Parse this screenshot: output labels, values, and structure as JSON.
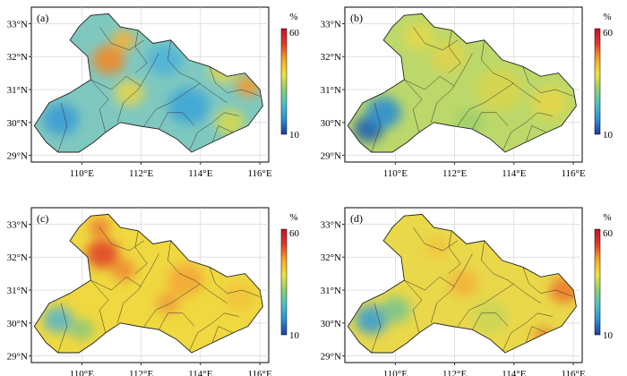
{
  "figure": {
    "x_ticks": [
      "110°E",
      "112°E",
      "114°E",
      "116°E"
    ],
    "y_ticks": [
      "33°N",
      "32°N",
      "31°N",
      "30°N",
      "29°N"
    ],
    "colorbar": {
      "unit": "%",
      "max_label": "60",
      "min_label": "10",
      "colors": [
        "#1f3d9e",
        "#2b8fd6",
        "#49c2c8",
        "#8fd16a",
        "#f0e33a",
        "#f5a623",
        "#e8362a",
        "#c8102e"
      ]
    },
    "panels": [
      {
        "label": "(a)",
        "base_color": "#7fc8c0",
        "blobs": [
          {
            "lon": 110.9,
            "lat": 31.9,
            "r": 0.55,
            "c": "#f08a2a"
          },
          {
            "lon": 111.4,
            "lat": 32.5,
            "r": 0.4,
            "c": "#f5b33a"
          },
          {
            "lon": 112.8,
            "lat": 31.9,
            "r": 0.6,
            "c": "#4fb4d8"
          },
          {
            "lon": 113.6,
            "lat": 30.5,
            "r": 0.7,
            "c": "#3fa6d6"
          },
          {
            "lon": 109.3,
            "lat": 30.1,
            "r": 0.6,
            "c": "#3a9bd4"
          },
          {
            "lon": 115.6,
            "lat": 31.1,
            "r": 0.4,
            "c": "#f59a2e"
          },
          {
            "lon": 114.8,
            "lat": 31.6,
            "r": 0.5,
            "c": "#e9d84a"
          },
          {
            "lon": 111.6,
            "lat": 30.9,
            "r": 0.5,
            "c": "#e6d44d"
          },
          {
            "lon": 115.0,
            "lat": 30.0,
            "r": 0.5,
            "c": "#d6d94a"
          }
        ]
      },
      {
        "label": "(b)",
        "base_color": "#bcd86a",
        "blobs": [
          {
            "lon": 109.1,
            "lat": 29.8,
            "r": 0.5,
            "c": "#1f5fb0"
          },
          {
            "lon": 109.6,
            "lat": 30.3,
            "r": 0.6,
            "c": "#2f8fcf"
          },
          {
            "lon": 110.8,
            "lat": 32.6,
            "r": 0.5,
            "c": "#e6d84a"
          },
          {
            "lon": 111.8,
            "lat": 32.0,
            "r": 0.6,
            "c": "#e0d44e"
          },
          {
            "lon": 113.5,
            "lat": 31.0,
            "r": 0.8,
            "c": "#d6d54c"
          },
          {
            "lon": 115.2,
            "lat": 30.6,
            "r": 0.6,
            "c": "#e5d648"
          },
          {
            "lon": 112.5,
            "lat": 30.0,
            "r": 0.5,
            "c": "#9fd06a"
          }
        ]
      },
      {
        "label": "(c)",
        "base_color": "#efd840",
        "blobs": [
          {
            "lon": 110.7,
            "lat": 32.1,
            "r": 0.55,
            "c": "#e0462a"
          },
          {
            "lon": 110.6,
            "lat": 32.9,
            "r": 0.35,
            "c": "#ec7a30"
          },
          {
            "lon": 111.4,
            "lat": 31.6,
            "r": 0.4,
            "c": "#ee8a32"
          },
          {
            "lon": 113.5,
            "lat": 31.3,
            "r": 0.6,
            "c": "#f4a636"
          },
          {
            "lon": 112.9,
            "lat": 30.6,
            "r": 0.4,
            "c": "#f0a03a"
          },
          {
            "lon": 109.2,
            "lat": 30.1,
            "r": 0.5,
            "c": "#5ab6c8"
          },
          {
            "lon": 110.0,
            "lat": 29.8,
            "r": 0.4,
            "c": "#8cc87a"
          },
          {
            "lon": 115.3,
            "lat": 30.8,
            "r": 0.5,
            "c": "#f2c23a"
          }
        ]
      },
      {
        "label": "(d)",
        "base_color": "#e9d84a",
        "blobs": [
          {
            "lon": 109.2,
            "lat": 30.1,
            "r": 0.55,
            "c": "#3c9ed2"
          },
          {
            "lon": 110.0,
            "lat": 30.4,
            "r": 0.5,
            "c": "#7cc48c"
          },
          {
            "lon": 115.7,
            "lat": 31.0,
            "r": 0.5,
            "c": "#ec7a2e"
          },
          {
            "lon": 115.0,
            "lat": 29.6,
            "r": 0.35,
            "c": "#f08a2c"
          },
          {
            "lon": 112.3,
            "lat": 31.2,
            "r": 0.5,
            "c": "#f3b43a"
          },
          {
            "lon": 113.2,
            "lat": 30.2,
            "r": 0.6,
            "c": "#c9d65a"
          },
          {
            "lon": 111.4,
            "lat": 32.3,
            "r": 0.4,
            "c": "#f2c43a"
          }
        ]
      }
    ],
    "region_outline": [
      [
        108.4,
        29.9
      ],
      [
        108.9,
        30.6
      ],
      [
        109.6,
        30.9
      ],
      [
        110.3,
        31.3
      ],
      [
        110.2,
        32.0
      ],
      [
        109.6,
        32.5
      ],
      [
        109.9,
        32.9
      ],
      [
        110.3,
        33.25
      ],
      [
        110.9,
        33.3
      ],
      [
        111.3,
        32.9
      ],
      [
        111.9,
        32.8
      ],
      [
        112.4,
        32.4
      ],
      [
        113.0,
        32.5
      ],
      [
        113.6,
        31.9
      ],
      [
        114.3,
        31.7
      ],
      [
        114.9,
        31.4
      ],
      [
        115.5,
        31.5
      ],
      [
        116.0,
        31.0
      ],
      [
        116.1,
        30.5
      ],
      [
        115.6,
        29.9
      ],
      [
        115.1,
        29.7
      ],
      [
        114.4,
        29.4
      ],
      [
        113.7,
        29.1
      ],
      [
        113.2,
        29.5
      ],
      [
        112.6,
        29.8
      ],
      [
        111.9,
        29.9
      ],
      [
        111.3,
        30.0
      ],
      [
        110.8,
        29.7
      ],
      [
        110.4,
        29.4
      ],
      [
        109.9,
        29.1
      ],
      [
        109.2,
        29.1
      ],
      [
        108.8,
        29.4
      ]
    ],
    "county_lines": [
      [
        [
          109.2,
          29.1
        ],
        [
          109.5,
          29.9
        ],
        [
          109.3,
          30.6
        ]
      ],
      [
        [
          110.3,
          31.3
        ],
        [
          111.0,
          31.0
        ],
        [
          111.5,
          31.4
        ],
        [
          112.0,
          31.1
        ]
      ],
      [
        [
          110.6,
          32.9
        ],
        [
          111.0,
          32.4
        ],
        [
          111.6,
          32.2
        ],
        [
          112.1,
          32.5
        ]
      ],
      [
        [
          111.2,
          30.0
        ],
        [
          111.4,
          30.6
        ],
        [
          111.9,
          31.0
        ],
        [
          112.3,
          31.6
        ],
        [
          112.6,
          32.1
        ]
      ],
      [
        [
          112.1,
          29.9
        ],
        [
          112.5,
          30.4
        ],
        [
          113.0,
          30.6
        ],
        [
          113.5,
          30.9
        ],
        [
          114.0,
          31.2
        ]
      ],
      [
        [
          113.0,
          32.5
        ],
        [
          112.9,
          31.9
        ],
        [
          113.3,
          31.5
        ],
        [
          113.8,
          31.3
        ],
        [
          114.4,
          30.9
        ],
        [
          114.9,
          30.6
        ]
      ],
      [
        [
          114.3,
          31.7
        ],
        [
          114.5,
          31.2
        ],
        [
          114.9,
          30.9
        ],
        [
          115.4,
          31.0
        ],
        [
          116.0,
          30.8
        ]
      ],
      [
        [
          113.6,
          29.1
        ],
        [
          113.9,
          29.7
        ],
        [
          114.4,
          30.0
        ],
        [
          114.8,
          30.3
        ],
        [
          115.3,
          30.2
        ]
      ],
      [
        [
          110.8,
          29.7
        ],
        [
          110.6,
          30.4
        ],
        [
          110.9,
          30.7
        ],
        [
          110.3,
          31.3
        ]
      ],
      [
        [
          111.9,
          32.8
        ],
        [
          111.8,
          32.3
        ],
        [
          112.2,
          31.8
        ],
        [
          111.8,
          31.5
        ]
      ],
      [
        [
          114.4,
          29.4
        ],
        [
          114.6,
          29.9
        ],
        [
          115.1,
          29.7
        ]
      ],
      [
        [
          112.6,
          29.8
        ],
        [
          112.9,
          30.3
        ],
        [
          113.4,
          30.3
        ],
        [
          113.8,
          29.9
        ]
      ]
    ]
  }
}
